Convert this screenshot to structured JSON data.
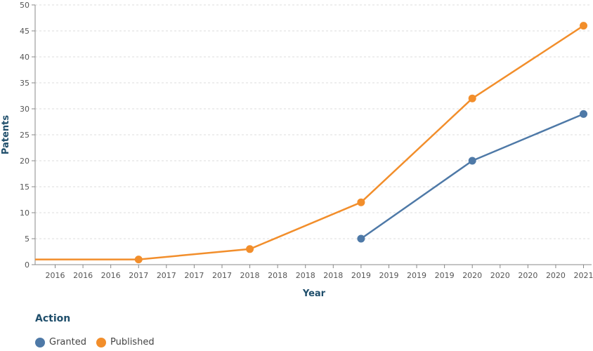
{
  "chart_data": {
    "type": "line",
    "xlabel": "Year",
    "ylabel": "Patents",
    "ylim": [
      0,
      50
    ],
    "yticks": [
      0,
      5,
      10,
      15,
      20,
      25,
      30,
      35,
      40,
      45,
      50
    ],
    "x_tick_labels": [
      "2016",
      "2016",
      "2016",
      "2017",
      "2017",
      "2017",
      "2017",
      "2018",
      "2018",
      "2018",
      "2018",
      "2019",
      "2019",
      "2019",
      "2019",
      "2020",
      "2020",
      "2020",
      "2020",
      "2021"
    ],
    "grid": true,
    "legend": {
      "title": "Action",
      "placement": "bottom-left"
    },
    "series": [
      {
        "name": "Granted",
        "color": "#4e79a7",
        "points": [
          {
            "x": "2019",
            "y": 5
          },
          {
            "x": "2020",
            "y": 20
          },
          {
            "x": "2021",
            "y": 29
          }
        ]
      },
      {
        "name": "Published",
        "color": "#f28e2b",
        "points": [
          {
            "x": "2017",
            "y": 1
          },
          {
            "x": "2018",
            "y": 3
          },
          {
            "x": "2019",
            "y": 12
          },
          {
            "x": "2020",
            "y": 32
          },
          {
            "x": "2021",
            "y": 46
          }
        ]
      }
    ]
  }
}
